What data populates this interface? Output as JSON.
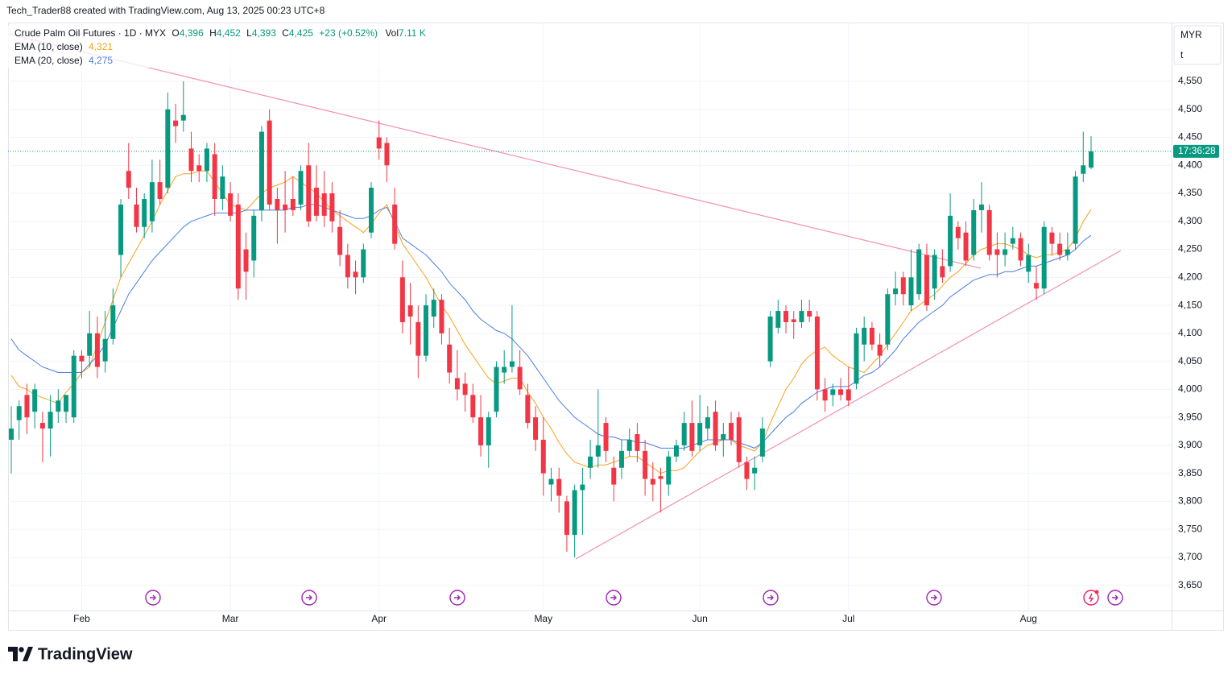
{
  "header": "Tech_Trader88 created with TradingView.com, Aug 13, 2025 00:23 UTC+8",
  "brand": "TradingView",
  "chart_data": {
    "type": "candlestick",
    "legend": {
      "symbol": "Crude Palm Oil Futures · 1D · MYX",
      "fields": [
        {
          "key": "O",
          "value": "4,396"
        },
        {
          "key": "H",
          "value": "4,452"
        },
        {
          "key": "L",
          "value": "4,393"
        },
        {
          "key": "C",
          "value": "4,425"
        }
      ],
      "change": "+23 (+0.52%)",
      "volume_key": "Vol",
      "volume": "7.11 K"
    },
    "currency": "MYR",
    "unit": "t",
    "countdown": "17:36:28",
    "up_color": "#089981",
    "down_color": "#f23645",
    "grid": true,
    "ylim": [
      3605,
      4655
    ],
    "yticks": [
      {
        "value": 3650,
        "label": "3,650"
      },
      {
        "value": 3700,
        "label": "3,700"
      },
      {
        "value": 3750,
        "label": "3,750"
      },
      {
        "value": 3800,
        "label": "3,800"
      },
      {
        "value": 3850,
        "label": "3,850"
      },
      {
        "value": 3900,
        "label": "3,900"
      },
      {
        "value": 3950,
        "label": "3,950"
      },
      {
        "value": 4000,
        "label": "4,000"
      },
      {
        "value": 4050,
        "label": "4,050"
      },
      {
        "value": 4100,
        "label": "4,100"
      },
      {
        "value": 4150,
        "label": "4,150"
      },
      {
        "value": 4200,
        "label": "4,200"
      },
      {
        "value": 4250,
        "label": "4,250"
      },
      {
        "value": 4300,
        "label": "4,300"
      },
      {
        "value": 4350,
        "label": "4,350"
      },
      {
        "value": 4400,
        "label": "4,400"
      },
      {
        "value": 4450,
        "label": "4,450"
      },
      {
        "value": 4500,
        "label": "4,500"
      },
      {
        "value": 4550,
        "label": "4,550"
      }
    ],
    "categories": [
      null,
      null,
      null,
      null,
      null,
      null,
      null,
      null,
      null,
      "Feb",
      null,
      null,
      null,
      null,
      null,
      null,
      null,
      null,
      null,
      null,
      null,
      null,
      null,
      null,
      null,
      null,
      null,
      null,
      "Mar",
      null,
      null,
      null,
      null,
      null,
      null,
      null,
      null,
      null,
      null,
      null,
      null,
      null,
      null,
      null,
      null,
      null,
      null,
      "Apr",
      null,
      null,
      null,
      null,
      null,
      null,
      null,
      null,
      null,
      null,
      null,
      null,
      null,
      null,
      null,
      null,
      null,
      null,
      null,
      null,
      "May",
      null,
      null,
      null,
      null,
      null,
      null,
      null,
      null,
      null,
      null,
      null,
      null,
      null,
      null,
      null,
      null,
      null,
      null,
      null,
      "Jun",
      null,
      null,
      null,
      null,
      null,
      null,
      null,
      null,
      null,
      null,
      null,
      null,
      null,
      null,
      null,
      null,
      null,
      null,
      "Jul",
      null,
      null,
      null,
      null,
      null,
      null,
      null,
      null,
      null,
      null,
      null,
      null,
      null,
      null,
      null,
      null,
      null,
      null,
      null,
      null,
      null,
      null,
      "Aug",
      null,
      null,
      null,
      null,
      null,
      null,
      null,
      null
    ],
    "ohlc": [
      [
        3910,
        3970,
        3850,
        3930
      ],
      [
        3945,
        3980,
        3910,
        3970
      ],
      [
        3990,
        4010,
        3920,
        3950
      ],
      [
        3960,
        4010,
        3930,
        4000
      ],
      [
        3940,
        3960,
        3870,
        3930
      ],
      [
        3930,
        3990,
        3880,
        3960
      ],
      [
        3960,
        4000,
        3940,
        3980
      ],
      [
        3960,
        3990,
        3940,
        3990
      ],
      [
        3950,
        4070,
        3940,
        4060
      ],
      [
        4060,
        4070,
        4020,
        4050
      ],
      [
        4060,
        4140,
        4040,
        4100
      ],
      [
        4100,
        4130,
        4020,
        4040
      ],
      [
        4050,
        4140,
        4030,
        4090
      ],
      [
        4090,
        4180,
        4080,
        4150
      ],
      [
        4240,
        4340,
        4200,
        4330
      ],
      [
        4390,
        4440,
        4340,
        4360
      ],
      [
        4330,
        4360,
        4280,
        4290
      ],
      [
        4290,
        4350,
        4270,
        4340
      ],
      [
        4300,
        4410,
        4280,
        4370
      ],
      [
        4370,
        4410,
        4330,
        4340
      ],
      [
        4360,
        4530,
        4350,
        4500
      ],
      [
        4480,
        4510,
        4440,
        4470
      ],
      [
        4480,
        4550,
        4460,
        4490
      ],
      [
        4430,
        4460,
        4370,
        4390
      ],
      [
        4400,
        4420,
        4370,
        4390
      ],
      [
        4390,
        4440,
        4370,
        4430
      ],
      [
        4420,
        4440,
        4310,
        4340
      ],
      [
        4340,
        4400,
        4320,
        4380
      ],
      [
        4350,
        4370,
        4300,
        4310
      ],
      [
        4330,
        4350,
        4160,
        4180
      ],
      [
        4250,
        4280,
        4160,
        4210
      ],
      [
        4230,
        4320,
        4200,
        4310
      ],
      [
        4320,
        4470,
        4300,
        4460
      ],
      [
        4480,
        4500,
        4320,
        4330
      ],
      [
        4340,
        4360,
        4260,
        4320
      ],
      [
        4330,
        4390,
        4280,
        4320
      ],
      [
        4340,
        4380,
        4310,
        4320
      ],
      [
        4330,
        4400,
        4320,
        4390
      ],
      [
        4400,
        4440,
        4290,
        4300
      ],
      [
        4360,
        4400,
        4300,
        4310
      ],
      [
        4350,
        4390,
        4290,
        4310
      ],
      [
        4350,
        4370,
        4280,
        4300
      ],
      [
        4290,
        4320,
        4220,
        4240
      ],
      [
        4240,
        4260,
        4180,
        4200
      ],
      [
        4210,
        4230,
        4170,
        4200
      ],
      [
        4200,
        4260,
        4190,
        4250
      ],
      [
        4280,
        4370,
        4270,
        4360
      ],
      [
        4450,
        4480,
        4410,
        4430
      ],
      [
        4440,
        4450,
        4370,
        4400
      ],
      [
        4330,
        4360,
        4250,
        4260
      ],
      [
        4200,
        4230,
        4100,
        4120
      ],
      [
        4150,
        4190,
        4080,
        4130
      ],
      [
        4120,
        4150,
        4020,
        4060
      ],
      [
        4060,
        4170,
        4050,
        4150
      ],
      [
        4130,
        4180,
        4110,
        4160
      ],
      [
        4160,
        4170,
        4080,
        4100
      ],
      [
        4080,
        4110,
        4010,
        4030
      ],
      [
        4020,
        4070,
        3980,
        4000
      ],
      [
        4010,
        4030,
        3960,
        3990
      ],
      [
        3990,
        4010,
        3940,
        3950
      ],
      [
        3950,
        3990,
        3880,
        3900
      ],
      [
        3900,
        3960,
        3860,
        3950
      ],
      [
        3960,
        4050,
        3950,
        4040
      ],
      [
        4030,
        4070,
        4010,
        4040
      ],
      [
        4040,
        4150,
        4030,
        4050
      ],
      [
        4040,
        4070,
        3990,
        4000
      ],
      [
        3990,
        4010,
        3930,
        3940
      ],
      [
        3950,
        3970,
        3890,
        3910
      ],
      [
        3910,
        3950,
        3810,
        3850
      ],
      [
        3830,
        3860,
        3800,
        3840
      ],
      [
        3840,
        3860,
        3780,
        3810
      ],
      [
        3800,
        3810,
        3710,
        3740
      ],
      [
        3740,
        3830,
        3700,
        3820
      ],
      [
        3820,
        3860,
        3740,
        3830
      ],
      [
        3860,
        3910,
        3840,
        3880
      ],
      [
        3880,
        4000,
        3860,
        3900
      ],
      [
        3940,
        3950,
        3870,
        3890
      ],
      [
        3860,
        3880,
        3800,
        3830
      ],
      [
        3860,
        3910,
        3840,
        3890
      ],
      [
        3890,
        3930,
        3880,
        3910
      ],
      [
        3920,
        3940,
        3870,
        3890
      ],
      [
        3890,
        3910,
        3810,
        3840
      ],
      [
        3840,
        3870,
        3800,
        3830
      ],
      [
        3845,
        3860,
        3780,
        3840
      ],
      [
        3830,
        3890,
        3810,
        3880
      ],
      [
        3880,
        3910,
        3870,
        3900
      ],
      [
        3900,
        3960,
        3890,
        3940
      ],
      [
        3940,
        3980,
        3880,
        3890
      ],
      [
        3900,
        3990,
        3890,
        3940
      ],
      [
        3930,
        3970,
        3910,
        3950
      ],
      [
        3960,
        3980,
        3890,
        3900
      ],
      [
        3910,
        3940,
        3880,
        3920
      ],
      [
        3940,
        3960,
        3900,
        3910
      ],
      [
        3950,
        3960,
        3860,
        3870
      ],
      [
        3870,
        3880,
        3820,
        3840
      ],
      [
        3850,
        3880,
        3820,
        3860
      ],
      [
        3880,
        3950,
        3870,
        3930
      ],
      [
        4050,
        4140,
        4040,
        4130
      ],
      [
        4110,
        4160,
        4100,
        4140
      ],
      [
        4140,
        4150,
        4100,
        4120
      ],
      [
        4125,
        4140,
        4090,
        4120
      ],
      [
        4120,
        4160,
        4110,
        4140
      ],
      [
        4140,
        4160,
        4120,
        4130
      ],
      [
        4130,
        4140,
        3980,
        4000
      ],
      [
        4000,
        4020,
        3960,
        3980
      ],
      [
        3990,
        4010,
        3970,
        4000
      ],
      [
        4000,
        4020,
        3980,
        3990
      ],
      [
        4000,
        4040,
        3970,
        3980
      ],
      [
        4010,
        4110,
        4000,
        4100
      ],
      [
        4080,
        4130,
        4050,
        4110
      ],
      [
        4110,
        4120,
        4070,
        4080
      ],
      [
        4080,
        4100,
        4040,
        4060
      ],
      [
        4080,
        4180,
        4070,
        4170
      ],
      [
        4170,
        4210,
        4150,
        4180
      ],
      [
        4200,
        4210,
        4150,
        4170
      ],
      [
        4150,
        4250,
        4140,
        4200
      ],
      [
        4170,
        4260,
        4160,
        4250
      ],
      [
        4240,
        4260,
        4140,
        4150
      ],
      [
        4180,
        4250,
        4160,
        4240
      ],
      [
        4220,
        4250,
        4190,
        4200
      ],
      [
        4220,
        4350,
        4210,
        4310
      ],
      [
        4290,
        4300,
        4250,
        4270
      ],
      [
        4280,
        4300,
        4220,
        4230
      ],
      [
        4240,
        4340,
        4230,
        4320
      ],
      [
        4320,
        4370,
        4280,
        4330
      ],
      [
        4320,
        4330,
        4230,
        4240
      ],
      [
        4250,
        4280,
        4200,
        4240
      ],
      [
        4240,
        4280,
        4220,
        4250
      ],
      [
        4260,
        4290,
        4250,
        4270
      ],
      [
        4270,
        4280,
        4220,
        4230
      ],
      [
        4210,
        4260,
        4190,
        4240
      ],
      [
        4190,
        4220,
        4160,
        4180
      ],
      [
        4180,
        4300,
        4170,
        4290
      ],
      [
        4280,
        4290,
        4240,
        4260
      ],
      [
        4260,
        4280,
        4230,
        4240
      ],
      [
        4240,
        4280,
        4230,
        4250
      ],
      [
        4260,
        4390,
        4250,
        4380
      ],
      [
        4385,
        4460,
        4370,
        4400
      ],
      [
        4396,
        4452,
        4393,
        4425
      ]
    ],
    "series": [
      {
        "name": "EMA (10, close)",
        "color": "#f7a21b",
        "last_label": "4,321",
        "values": [
          4025,
          4005,
          4000,
          3990,
          3985,
          3980,
          3975,
          3995,
          4010,
          4030,
          4040,
          4080,
          4120,
          4160,
          4200,
          4225,
          4250,
          4275,
          4300,
          4330,
          4355,
          4380,
          4385,
          4385,
          4390,
          4390,
          4370,
          4350,
          4330,
          4325,
          4320,
          4335,
          4350,
          4360,
          4365,
          4370,
          4380,
          4370,
          4360,
          4350,
          4335,
          4320,
          4310,
          4300,
          4290,
          4280,
          4295,
          4315,
          4330,
          4295,
          4260,
          4240,
          4220,
          4200,
          4175,
          4150,
          4130,
          4105,
          4080,
          4060,
          4040,
          4020,
          4010,
          4015,
          4020,
          4020,
          3995,
          3975,
          3950,
          3930,
          3905,
          3885,
          3870,
          3865,
          3860,
          3865,
          3865,
          3870,
          3875,
          3880,
          3880,
          3870,
          3860,
          3850,
          3855,
          3855,
          3860,
          3875,
          3890,
          3900,
          3905,
          3910,
          3910,
          3900,
          3895,
          3890,
          3905,
          3940,
          3970,
          4000,
          4020,
          4045,
          4060,
          4070,
          4075,
          4060,
          4050,
          4040,
          4035,
          4030,
          4045,
          4060,
          4080,
          4100,
          4120,
          4140,
          4150,
          4160,
          4170,
          4185,
          4200,
          4210,
          4225,
          4240,
          4250,
          4255,
          4260,
          4260,
          4255,
          4250,
          4240,
          4235,
          4240,
          4240,
          4245,
          4250,
          4270,
          4300,
          4321
        ]
      },
      {
        "name": "EMA (20, close)",
        "color": "#4a7ee0",
        "last_label": "4,275",
        "values": [
          4090,
          4070,
          4060,
          4050,
          4040,
          4035,
          4030,
          4030,
          4030,
          4030,
          4045,
          4060,
          4080,
          4110,
          4140,
          4170,
          4190,
          4210,
          4230,
          4245,
          4260,
          4275,
          4290,
          4300,
          4305,
          4310,
          4315,
          4315,
          4315,
          4315,
          4320,
          4320,
          4320,
          4320,
          4320,
          4320,
          4325,
          4325,
          4330,
          4330,
          4325,
          4320,
          4315,
          4310,
          4305,
          4305,
          4310,
          4320,
          4325,
          4300,
          4270,
          4260,
          4250,
          4240,
          4225,
          4210,
          4190,
          4175,
          4160,
          4140,
          4125,
          4115,
          4105,
          4100,
          4090,
          4075,
          4060,
          4040,
          4020,
          4000,
          3980,
          3965,
          3950,
          3940,
          3930,
          3920,
          3915,
          3915,
          3910,
          3910,
          3905,
          3905,
          3900,
          3895,
          3895,
          3895,
          3895,
          3900,
          3905,
          3910,
          3910,
          3910,
          3910,
          3905,
          3900,
          3895,
          3905,
          3920,
          3935,
          3950,
          3960,
          3975,
          3985,
          3995,
          4000,
          4005,
          4005,
          4005,
          4015,
          4025,
          4030,
          4040,
          4055,
          4070,
          4090,
          4105,
          4120,
          4130,
          4140,
          4150,
          4165,
          4175,
          4185,
          4195,
          4200,
          4205,
          4205,
          4210,
          4210,
          4215,
          4220,
          4220,
          4225,
          4230,
          4235,
          4240,
          4250,
          4265,
          4275
        ]
      }
    ]
  }
}
